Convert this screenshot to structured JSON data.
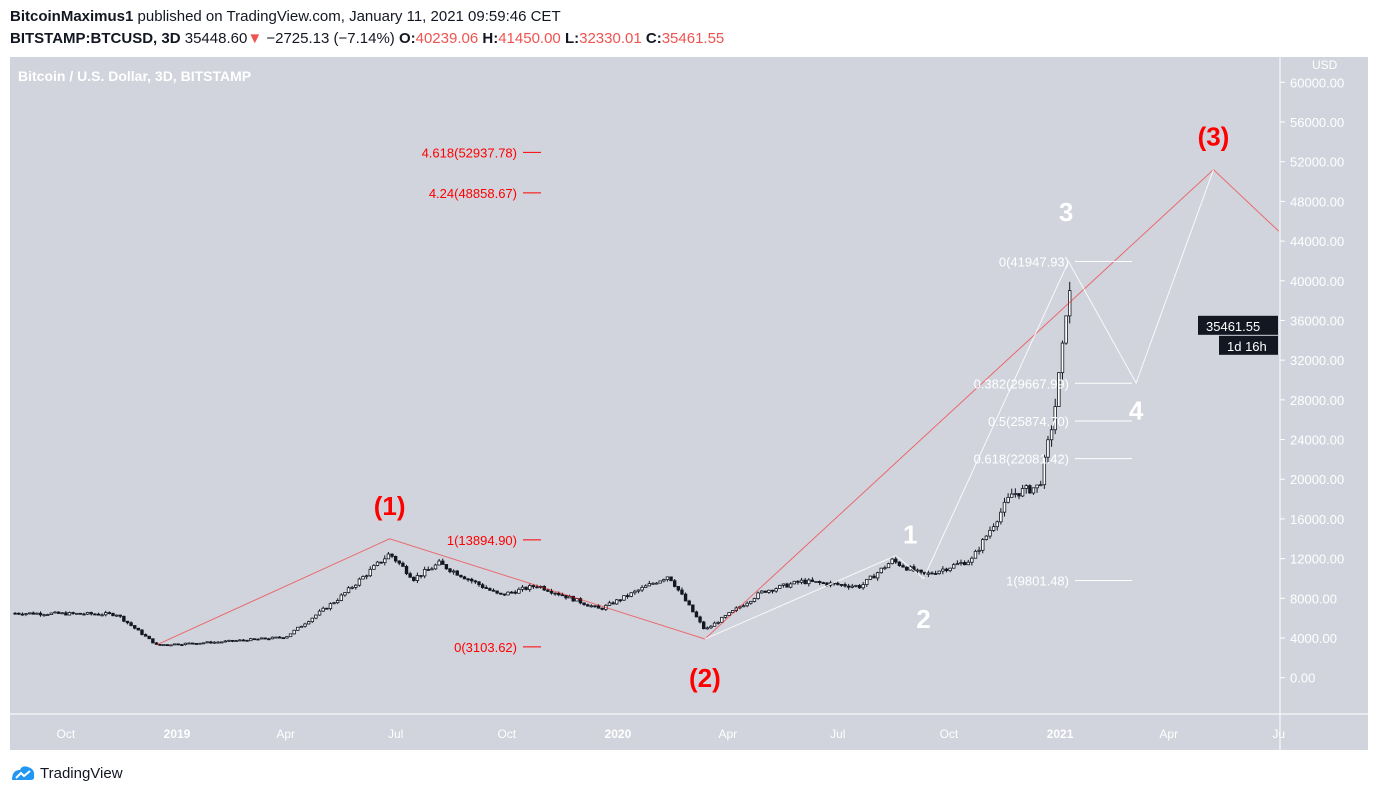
{
  "header": {
    "author": "BitcoinMaximus1",
    "published": "published on TradingView.com, January 11, 2021 09:59:46 CET",
    "symbol": "BITSTAMP:BTCUSD, 3D",
    "last": "35448.60",
    "change": "−2725.13 (−7.14%)",
    "o_label": "O:",
    "o": "40239.06",
    "h_label": "H:",
    "h": "41450.00",
    "l_label": "L:",
    "l": "32330.01",
    "c_label": "C:",
    "c": "35461.55"
  },
  "chart_data": {
    "type": "candlestick",
    "title": "Bitcoin / U.S. Dollar, 3D, BITSTAMP",
    "currency": "USD",
    "ylim": [
      -3000,
      62000
    ],
    "y_ticks": [
      "60000.00",
      "56000.00",
      "52000.00",
      "48000.00",
      "44000.00",
      "40000.00",
      "36000.00",
      "32000.00",
      "28000.00",
      "24000.00",
      "20000.00",
      "16000.00",
      "12000.00",
      "8000.00",
      "4000.00",
      "0.00"
    ],
    "x_ticks": [
      {
        "label": "Oct",
        "date": "2018-10-01"
      },
      {
        "label": "2019",
        "date": "2019-01-01"
      },
      {
        "label": "Apr",
        "date": "2019-04-01"
      },
      {
        "label": "Jul",
        "date": "2019-07-01"
      },
      {
        "label": "Oct",
        "date": "2019-10-01"
      },
      {
        "label": "2020",
        "date": "2020-01-01"
      },
      {
        "label": "Apr",
        "date": "2020-04-01"
      },
      {
        "label": "Jul",
        "date": "2020-07-01"
      },
      {
        "label": "Oct",
        "date": "2020-10-01"
      },
      {
        "label": "2021",
        "date": "2021-01-01"
      },
      {
        "label": "Apr",
        "date": "2021-04-01"
      },
      {
        "label": "Ju",
        "date": "2021-07-01"
      }
    ],
    "price_path": [
      [
        "2018-08-20",
        6500
      ],
      [
        "2018-11-12",
        6400
      ],
      [
        "2018-12-15",
        3300
      ],
      [
        "2019-02-05",
        3600
      ],
      [
        "2019-04-01",
        4100
      ],
      [
        "2019-05-15",
        8000
      ],
      [
        "2019-06-26",
        12500
      ],
      [
        "2019-07-16",
        10000
      ],
      [
        "2019-08-06",
        11500
      ],
      [
        "2019-09-25",
        8300
      ],
      [
        "2019-10-26",
        9300
      ],
      [
        "2019-12-17",
        6900
      ],
      [
        "2020-02-12",
        10300
      ],
      [
        "2020-03-13",
        4800
      ],
      [
        "2020-04-30",
        8700
      ],
      [
        "2020-06-01",
        9700
      ],
      [
        "2020-07-20",
        9200
      ],
      [
        "2020-08-15",
        11800
      ],
      [
        "2020-09-10",
        10300
      ],
      [
        "2020-10-20",
        11900
      ],
      [
        "2020-11-22",
        18500
      ],
      [
        "2020-12-15",
        19300
      ],
      [
        "2020-12-27",
        26500
      ],
      [
        "2021-01-03",
        33000
      ],
      [
        "2021-01-08",
        40000
      ],
      [
        "2021-01-11",
        35461.55
      ]
    ],
    "last_price": {
      "value": "35461.55",
      "countdown": "1d 16h"
    },
    "wave_primary": {
      "points": [
        [
          "2018-12-15",
          3300
        ],
        [
          "2019-06-26",
          14000
        ],
        [
          "2020-03-13",
          3900
        ],
        [
          "2021-05-08",
          51200
        ],
        [
          "2021-07-01",
          45000
        ]
      ],
      "labels": [
        {
          "text": "(1)",
          "date": "2019-06-26",
          "price": 14000
        },
        {
          "text": "(2)",
          "date": "2020-03-13",
          "price": 3900
        },
        {
          "text": "(3)",
          "date": "2021-05-08",
          "price": 51200
        }
      ],
      "color": "#ff0000"
    },
    "wave_minor": {
      "points": [
        [
          "2020-03-13",
          3900
        ],
        [
          "2020-08-18",
          12300
        ],
        [
          "2020-09-10",
          10000
        ],
        [
          "2021-01-08",
          41947.93
        ],
        [
          "2021-03-05",
          29700
        ],
        [
          "2021-05-08",
          51200
        ]
      ],
      "labels": [
        {
          "text": "1",
          "date": "2020-08-30",
          "price": 13500
        },
        {
          "text": "2",
          "date": "2020-09-10",
          "price": 5000
        },
        {
          "text": "3",
          "date": "2021-01-06",
          "price": 46000
        },
        {
          "text": "4",
          "date": "2021-03-05",
          "price": 26000
        }
      ],
      "color": "#ffffff"
    },
    "fib_extension": [
      {
        "label": "4.618(52937.78)",
        "price": 52937.78
      },
      {
        "label": "4.24(48858.67)",
        "price": 48858.67
      },
      {
        "label": "1(13894.90)",
        "price": 13894.9
      },
      {
        "label": "0(3103.62)",
        "price": 3103.62
      }
    ],
    "fib_retracement": [
      {
        "label": "0(41947.93)",
        "price": 41947.93
      },
      {
        "label": "0.382(29667.99)",
        "price": 29667.99
      },
      {
        "label": "0.5(25874.70)",
        "price": 25874.7
      },
      {
        "label": "0.618(22081.42)",
        "price": 22081.42
      },
      {
        "label": "1(9801.48)",
        "price": 9801.48
      }
    ]
  },
  "footer": {
    "brand": "TradingView"
  },
  "colors": {
    "pane": "#d1d4dc",
    "down": "#ef5350",
    "candle": "#131722",
    "fib_red": "#ff0000"
  }
}
